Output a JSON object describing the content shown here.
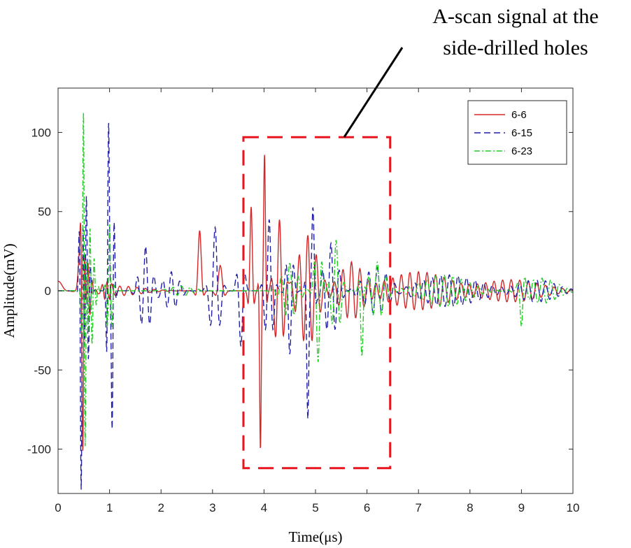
{
  "chart_data": {
    "type": "line",
    "xlabel": "Time(μs)",
    "ylabel": "Amplitude(mV)",
    "xlim": [
      0,
      10
    ],
    "ylim": [
      -128,
      128
    ],
    "xticks": [
      0,
      1,
      2,
      3,
      4,
      5,
      6,
      7,
      8,
      9,
      10
    ],
    "yticks": [
      -100,
      -50,
      0,
      50,
      100
    ],
    "grid": false,
    "legend": "top-right",
    "series": [
      {
        "name": "6-6",
        "color": "#d62728",
        "dash": "solid",
        "bursts": [
          {
            "t": 0.0,
            "amp": 6,
            "freq": 1.5,
            "env": 0.15
          },
          {
            "t": 0.42,
            "amp": 22,
            "freq": 3,
            "env": 0.05
          },
          {
            "t": 0.48,
            "amp": -105,
            "freq": 9,
            "env": 0.04
          },
          {
            "t": 0.58,
            "amp": 18,
            "freq": 12,
            "env": 0.08
          },
          {
            "t": 0.95,
            "amp": 8,
            "freq": 10,
            "env": 0.08
          },
          {
            "t": 1.2,
            "amp": 3,
            "freq": 6,
            "env": 0.6
          },
          {
            "t": 2.75,
            "amp": 38,
            "freq": 4,
            "env": 0.06
          },
          {
            "t": 3.15,
            "amp": 16,
            "freq": 4,
            "env": 0.08
          },
          {
            "t": 3.75,
            "amp": 53,
            "freq": 6,
            "env": 0.05
          },
          {
            "t": 3.93,
            "amp": -100,
            "freq": 7,
            "env": 0.03
          },
          {
            "t": 4.01,
            "amp": 86,
            "freq": 7,
            "env": 0.035
          },
          {
            "t": 4.3,
            "amp": 45,
            "freq": 6,
            "env": 0.12
          },
          {
            "t": 4.85,
            "amp": 35,
            "freq": 6,
            "env": 0.25
          },
          {
            "t": 5.7,
            "amp": 18,
            "freq": 6,
            "env": 0.3
          },
          {
            "t": 7.0,
            "amp": 12,
            "freq": 6,
            "env": 0.8
          },
          {
            "t": 8.8,
            "amp": 7,
            "freq": 6,
            "env": 0.8
          }
        ]
      },
      {
        "name": "6-15",
        "color": "#1f1fa8",
        "dash": "dashed",
        "bursts": [
          {
            "t": 0.45,
            "amp": -128,
            "freq": 10,
            "env": 0.04
          },
          {
            "t": 0.55,
            "amp": 60,
            "freq": 12,
            "env": 0.07
          },
          {
            "t": 0.98,
            "amp": 108,
            "freq": 11,
            "env": 0.04
          },
          {
            "t": 1.05,
            "amp": -88,
            "freq": 11,
            "env": 0.05
          },
          {
            "t": 1.7,
            "amp": 28,
            "freq": 6,
            "env": 0.15
          },
          {
            "t": 2.2,
            "amp": 12,
            "freq": 6,
            "env": 0.2
          },
          {
            "t": 3.05,
            "amp": 40,
            "freq": 5,
            "env": 0.12
          },
          {
            "t": 3.55,
            "amp": -35,
            "freq": 5,
            "env": 0.08
          },
          {
            "t": 4.1,
            "amp": 45,
            "freq": 6,
            "env": 0.1
          },
          {
            "t": 4.5,
            "amp": -40,
            "freq": 6,
            "env": 0.08
          },
          {
            "t": 4.85,
            "amp": -80,
            "freq": 6,
            "env": 0.04
          },
          {
            "t": 4.95,
            "amp": 52,
            "freq": 6,
            "env": 0.05
          },
          {
            "t": 5.3,
            "amp": 30,
            "freq": 6,
            "env": 0.18
          },
          {
            "t": 6.2,
            "amp": 15,
            "freq": 6,
            "env": 0.35
          },
          {
            "t": 7.6,
            "amp": 10,
            "freq": 6,
            "env": 0.8
          },
          {
            "t": 9.3,
            "amp": 7,
            "freq": 6,
            "env": 0.5
          }
        ]
      },
      {
        "name": "6-23",
        "color": "#22cc22",
        "dash": "dashdot",
        "bursts": [
          {
            "t": 0.5,
            "amp": 128,
            "freq": 10,
            "env": 0.04
          },
          {
            "t": 0.52,
            "amp": -115,
            "freq": 10,
            "env": 0.04
          },
          {
            "t": 0.62,
            "amp": 40,
            "freq": 12,
            "env": 0.1
          },
          {
            "t": 1.0,
            "amp": 42,
            "freq": 10,
            "env": 0.06
          },
          {
            "t": 2.4,
            "amp": 3,
            "freq": 6,
            "env": 0.3
          },
          {
            "t": 4.5,
            "amp": 18,
            "freq": 6,
            "env": 0.2
          },
          {
            "t": 5.05,
            "amp": -45,
            "freq": 6,
            "env": 0.08
          },
          {
            "t": 5.4,
            "amp": 32,
            "freq": 6,
            "env": 0.12
          },
          {
            "t": 5.9,
            "amp": -42,
            "freq": 6,
            "env": 0.05
          },
          {
            "t": 6.2,
            "amp": 18,
            "freq": 6,
            "env": 0.2
          },
          {
            "t": 7.5,
            "amp": 10,
            "freq": 6,
            "env": 0.6
          },
          {
            "t": 9.0,
            "amp": -20,
            "freq": 6,
            "env": 0.06
          },
          {
            "t": 9.4,
            "amp": 8,
            "freq": 6,
            "env": 0.4
          }
        ]
      }
    ],
    "annotation": {
      "text_lines": [
        "A-scan signal at the",
        "side-drilled holes"
      ],
      "box": {
        "x0": 3.6,
        "x1": 6.45,
        "y0": -112,
        "y1": 97
      },
      "box_color": "#e8141e"
    }
  }
}
